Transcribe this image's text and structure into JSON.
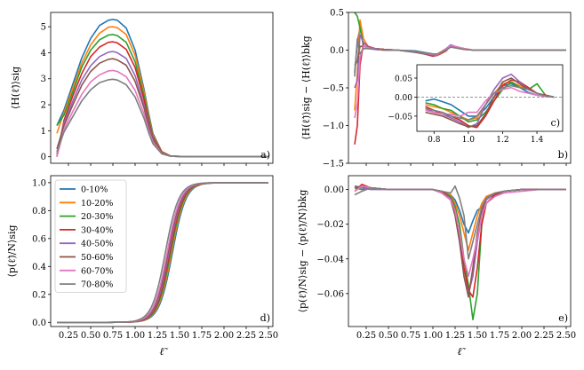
{
  "figure": {
    "xlabel": "ℓ̃"
  },
  "colors": {
    "0-10%": "#1f77b4",
    "10-20%": "#ff7f0e",
    "20-30%": "#2ca02c",
    "30-40%": "#d62728",
    "40-50%": "#9467bd",
    "50-60%": "#8c564b",
    "60-70%": "#e377c2",
    "70-80%": "#7f7f7f"
  },
  "chart_data": [
    {
      "id": "a",
      "type": "line",
      "panel_label": "a)",
      "ylabel": "⟨H(ℓ̃)⟩sig",
      "xlim": [
        0.05,
        2.55
      ],
      "ylim": [
        -0.25,
        5.55
      ],
      "yticks": [
        0,
        1,
        2,
        3,
        4,
        5
      ],
      "xticks": [
        0.25,
        0.5,
        0.75,
        1.0,
        1.25,
        1.5,
        1.75,
        2.0,
        2.25,
        2.5
      ],
      "x": [
        0.12,
        0.2,
        0.3,
        0.4,
        0.5,
        0.6,
        0.7,
        0.75,
        0.8,
        0.9,
        1.0,
        1.1,
        1.15,
        1.2,
        1.3,
        1.4,
        1.6,
        2.0,
        2.5
      ],
      "series": [
        {
          "name": "0-10%",
          "values": [
            1.2,
            1.8,
            2.8,
            3.8,
            4.55,
            5.05,
            5.25,
            5.28,
            5.25,
            4.95,
            4.1,
            2.6,
            1.7,
            0.9,
            0.2,
            0.03,
            0.0,
            0.0,
            0.0
          ]
        },
        {
          "name": "10-20%",
          "values": [
            0.9,
            1.7,
            2.65,
            3.6,
            4.3,
            4.75,
            4.98,
            5.0,
            4.96,
            4.7,
            3.9,
            2.5,
            1.6,
            0.85,
            0.2,
            0.03,
            0.0,
            0.0,
            0.0
          ]
        },
        {
          "name": "20-30%",
          "values": [
            1.2,
            1.6,
            2.5,
            3.45,
            4.1,
            4.5,
            4.68,
            4.7,
            4.66,
            4.4,
            3.65,
            2.35,
            1.5,
            0.8,
            0.18,
            0.03,
            0.0,
            0.0,
            0.0
          ]
        },
        {
          "name": "30-40%",
          "values": [
            0.0,
            1.4,
            2.35,
            3.2,
            3.85,
            4.22,
            4.4,
            4.42,
            4.38,
            4.13,
            3.43,
            2.2,
            1.4,
            0.75,
            0.17,
            0.02,
            0.0,
            0.0,
            0.0
          ]
        },
        {
          "name": "40-50%",
          "values": [
            0.1,
            1.3,
            2.15,
            2.95,
            3.5,
            3.85,
            4.02,
            4.05,
            4.0,
            3.78,
            3.12,
            2.0,
            1.3,
            0.7,
            0.15,
            0.02,
            0.0,
            0.0,
            0.0
          ]
        },
        {
          "name": "50-60%",
          "values": [
            0.3,
            1.2,
            2.0,
            2.75,
            3.28,
            3.6,
            3.75,
            3.77,
            3.72,
            3.52,
            2.9,
            1.88,
            1.2,
            0.65,
            0.14,
            0.02,
            0.0,
            0.0,
            0.0
          ]
        },
        {
          "name": "60-70%",
          "values": [
            0.0,
            1.05,
            1.75,
            2.4,
            2.88,
            3.15,
            3.3,
            3.32,
            3.28,
            3.08,
            2.55,
            1.65,
            1.05,
            0.57,
            0.12,
            0.02,
            0.0,
            0.0,
            0.0
          ]
        },
        {
          "name": "70-80%",
          "values": [
            0.2,
            0.95,
            1.55,
            2.15,
            2.58,
            2.85,
            2.96,
            2.98,
            2.95,
            2.77,
            2.3,
            1.48,
            0.95,
            0.5,
            0.11,
            0.02,
            0.0,
            0.0,
            0.0
          ]
        }
      ]
    },
    {
      "id": "b",
      "type": "line",
      "panel_label": "b)",
      "ylabel": "⟨H(ℓ̃)⟩sig − ⟨H(ℓ̃)⟩bkg",
      "xlim": [
        0.05,
        2.55
      ],
      "ylim": [
        -1.5,
        0.5
      ],
      "yticks": [
        -1.5,
        -1.0,
        -0.5,
        0.0,
        0.5
      ],
      "xticks": [
        0.25,
        0.5,
        0.75,
        1.0,
        1.25,
        1.5,
        1.75,
        2.0,
        2.25,
        2.5
      ],
      "x": [
        0.12,
        0.15,
        0.18,
        0.22,
        0.27,
        0.35,
        0.45,
        0.6,
        0.8,
        1.0,
        1.05,
        1.15,
        1.2,
        1.25,
        1.35,
        1.45,
        1.6,
        2.0,
        2.5
      ],
      "series": [
        {
          "name": "0-10%",
          "values": [
            -0.3,
            0.1,
            0.3,
            0.05,
            0.03,
            0.02,
            0.01,
            0.0,
            -0.01,
            -0.05,
            -0.05,
            0.0,
            0.05,
            0.04,
            0.02,
            0.0,
            0.0,
            0.0,
            0.0
          ]
        },
        {
          "name": "10-20%",
          "values": [
            -0.8,
            -0.3,
            0.4,
            0.15,
            0.05,
            0.02,
            0.01,
            0.0,
            -0.02,
            -0.06,
            -0.05,
            0.02,
            0.06,
            0.03,
            0.01,
            0.0,
            0.0,
            0.0,
            0.0
          ]
        },
        {
          "name": "20-30%",
          "values": [
            0.5,
            0.45,
            0.3,
            0.05,
            0.04,
            0.02,
            0.01,
            0.0,
            -0.02,
            -0.07,
            -0.06,
            0.0,
            0.05,
            0.04,
            0.02,
            0.0,
            0.0,
            0.0,
            0.0
          ]
        },
        {
          "name": "30-40%",
          "values": [
            -1.25,
            -1.0,
            -0.2,
            0.1,
            0.05,
            0.02,
            0.01,
            0.0,
            -0.02,
            -0.08,
            -0.07,
            -0.01,
            0.06,
            0.04,
            0.02,
            0.0,
            0.0,
            0.0,
            0.0
          ]
        },
        {
          "name": "40-50%",
          "values": [
            -0.5,
            -0.4,
            0.2,
            0.1,
            0.04,
            0.02,
            0.0,
            0.0,
            -0.03,
            -0.07,
            -0.07,
            0.02,
            0.07,
            0.05,
            0.02,
            0.0,
            0.0,
            0.0,
            0.0
          ]
        },
        {
          "name": "50-60%",
          "values": [
            -0.2,
            -0.15,
            0.05,
            0.05,
            0.03,
            0.01,
            0.0,
            0.0,
            -0.03,
            -0.07,
            -0.06,
            0.0,
            0.05,
            0.04,
            0.02,
            0.0,
            0.0,
            0.0,
            0.0
          ]
        },
        {
          "name": "60-70%",
          "values": [
            -0.9,
            -0.7,
            -0.1,
            0.05,
            0.03,
            0.01,
            0.0,
            0.0,
            -0.02,
            -0.06,
            -0.06,
            0.01,
            0.06,
            0.05,
            0.02,
            0.0,
            0.0,
            0.0,
            0.0
          ]
        },
        {
          "name": "70-80%",
          "values": [
            -0.35,
            0.15,
            -0.05,
            0.02,
            0.02,
            0.01,
            0.0,
            0.0,
            -0.02,
            -0.05,
            -0.05,
            0.0,
            0.04,
            0.03,
            0.01,
            0.0,
            0.0,
            0.0,
            0.0
          ]
        }
      ]
    },
    {
      "id": "c",
      "type": "line",
      "panel_label": "c)",
      "inset_of": "b",
      "xlim": [
        0.7,
        1.55
      ],
      "ylim": [
        -0.09,
        0.085
      ],
      "yticks": [
        -0.05,
        0.0,
        0.05
      ],
      "xticks": [
        0.8,
        1.0,
        1.2,
        1.4
      ],
      "zero_line": true,
      "x": [
        0.75,
        0.8,
        0.85,
        0.9,
        0.95,
        1.0,
        1.05,
        1.1,
        1.15,
        1.2,
        1.25,
        1.3,
        1.35,
        1.4,
        1.45,
        1.5
      ],
      "series": [
        {
          "name": "0-10%",
          "values": [
            -0.01,
            -0.005,
            -0.012,
            -0.02,
            -0.035,
            -0.05,
            -0.05,
            -0.03,
            0.0,
            0.03,
            0.035,
            0.025,
            0.012,
            0.005,
            0.002,
            0.0
          ]
        },
        {
          "name": "10-20%",
          "values": [
            -0.02,
            -0.025,
            -0.03,
            -0.04,
            -0.05,
            -0.06,
            -0.055,
            -0.02,
            0.01,
            0.035,
            0.04,
            0.03,
            0.02,
            0.01,
            0.003,
            0.0
          ]
        },
        {
          "name": "20-30%",
          "values": [
            -0.015,
            -0.02,
            -0.03,
            -0.035,
            -0.05,
            -0.065,
            -0.06,
            -0.04,
            -0.01,
            0.02,
            0.04,
            0.025,
            0.02,
            0.035,
            0.005,
            0.0
          ]
        },
        {
          "name": "30-40%",
          "values": [
            -0.025,
            -0.035,
            -0.045,
            -0.05,
            -0.06,
            -0.075,
            -0.08,
            -0.05,
            -0.01,
            0.03,
            0.045,
            0.04,
            0.025,
            0.01,
            0.005,
            0.0
          ]
        },
        {
          "name": "40-50%",
          "values": [
            -0.03,
            -0.04,
            -0.045,
            -0.055,
            -0.065,
            -0.08,
            -0.07,
            -0.02,
            0.02,
            0.05,
            0.06,
            0.04,
            0.02,
            0.01,
            0.003,
            0.0
          ]
        },
        {
          "name": "50-60%",
          "values": [
            -0.04,
            -0.045,
            -0.05,
            -0.06,
            -0.07,
            -0.078,
            -0.075,
            -0.045,
            0.0,
            0.04,
            0.05,
            0.035,
            0.02,
            0.01,
            0.003,
            0.0
          ]
        },
        {
          "name": "60-70%",
          "values": [
            -0.035,
            -0.04,
            -0.045,
            -0.045,
            -0.05,
            -0.04,
            -0.04,
            -0.01,
            0.01,
            0.02,
            0.025,
            0.015,
            0.01,
            0.005,
            0.002,
            0.0
          ]
        },
        {
          "name": "70-80%",
          "values": [
            -0.03,
            -0.035,
            -0.04,
            -0.05,
            -0.055,
            -0.06,
            -0.05,
            -0.02,
            0.01,
            0.025,
            0.03,
            0.025,
            0.02,
            0.01,
            0.003,
            0.0
          ]
        }
      ]
    },
    {
      "id": "d",
      "type": "line",
      "panel_label": "d)",
      "ylabel": "⟨p(ℓ̃)/N⟩sig",
      "xlim": [
        0.05,
        2.55
      ],
      "ylim": [
        -0.03,
        1.05
      ],
      "yticks": [
        0.0,
        0.2,
        0.4,
        0.6,
        0.8,
        1.0
      ],
      "xticks": [
        0.25,
        0.5,
        0.75,
        1.0,
        1.25,
        1.5,
        1.75,
        2.0,
        2.25,
        2.5
      ],
      "legend_position": "upper-left",
      "sigmoid_centers": [
        1.42,
        1.41,
        1.4,
        1.39,
        1.38,
        1.37,
        1.36,
        1.34
      ],
      "sigmoid_width": 0.075,
      "x_range": [
        0.12,
        2.5
      ],
      "series": [
        {
          "name": "0-10%"
        },
        {
          "name": "10-20%"
        },
        {
          "name": "20-30%"
        },
        {
          "name": "30-40%"
        },
        {
          "name": "40-50%"
        },
        {
          "name": "50-60%"
        },
        {
          "name": "60-70%"
        },
        {
          "name": "70-80%"
        }
      ]
    },
    {
      "id": "e",
      "type": "line",
      "panel_label": "e)",
      "ylabel": "⟨p(ℓ̃)/N⟩sig − ⟨p(ℓ̃)/N⟩bkg",
      "xlim": [
        0.05,
        2.55
      ],
      "ylim": [
        -0.079,
        0.008
      ],
      "yticks": [
        0.0,
        -0.02,
        -0.04,
        -0.06
      ],
      "xticks": [
        0.25,
        0.5,
        0.75,
        1.0,
        1.25,
        1.5,
        1.75,
        2.0,
        2.25,
        2.5
      ],
      "x": [
        0.12,
        0.2,
        0.3,
        0.5,
        0.8,
        1.0,
        1.1,
        1.2,
        1.25,
        1.3,
        1.35,
        1.4,
        1.45,
        1.5,
        1.55,
        1.6,
        1.7,
        1.8,
        2.0,
        2.2,
        2.5
      ],
      "series": [
        {
          "name": "0-10%",
          "values": [
            0.002,
            0.001,
            0.001,
            0.0,
            0.0,
            0.0,
            -0.001,
            -0.003,
            -0.006,
            -0.012,
            -0.02,
            -0.025,
            -0.018,
            -0.012,
            -0.01,
            -0.005,
            -0.003,
            -0.001,
            0.0,
            0.0,
            0.0
          ]
        },
        {
          "name": "10-20%",
          "values": [
            -0.001,
            0.002,
            0.001,
            0.0,
            0.0,
            0.0,
            -0.001,
            -0.003,
            -0.008,
            -0.015,
            -0.025,
            -0.035,
            -0.025,
            -0.015,
            -0.008,
            -0.004,
            -0.002,
            -0.001,
            0.0,
            0.0,
            0.0
          ]
        },
        {
          "name": "20-30%",
          "values": [
            0.001,
            0.0,
            0.001,
            0.0,
            0.0,
            0.0,
            -0.001,
            -0.004,
            -0.01,
            -0.02,
            -0.04,
            -0.055,
            -0.075,
            -0.06,
            -0.02,
            -0.008,
            -0.003,
            -0.001,
            0.0,
            0.0,
            0.0
          ]
        },
        {
          "name": "30-40%",
          "values": [
            -0.001,
            0.003,
            0.001,
            0.0,
            0.0,
            0.0,
            -0.001,
            -0.005,
            -0.012,
            -0.025,
            -0.045,
            -0.058,
            -0.062,
            -0.045,
            -0.02,
            -0.008,
            -0.003,
            -0.001,
            0.0,
            0.0,
            0.0
          ]
        },
        {
          "name": "40-50%",
          "values": [
            0.002,
            0.001,
            0.0,
            0.0,
            0.0,
            0.0,
            -0.002,
            -0.005,
            -0.015,
            -0.03,
            -0.05,
            -0.06,
            -0.05,
            -0.03,
            -0.015,
            -0.006,
            -0.002,
            -0.001,
            0.0,
            0.0,
            0.0
          ]
        },
        {
          "name": "50-60%",
          "values": [
            0.001,
            0.002,
            0.001,
            0.0,
            0.0,
            0.0,
            -0.002,
            -0.006,
            -0.015,
            -0.03,
            -0.05,
            -0.062,
            -0.045,
            -0.025,
            -0.012,
            -0.005,
            -0.002,
            -0.001,
            0.0,
            0.0,
            0.0
          ]
        },
        {
          "name": "60-70%",
          "values": [
            -0.001,
            0.002,
            0.001,
            0.0,
            0.0,
            0.0,
            -0.002,
            -0.006,
            -0.012,
            -0.025,
            -0.04,
            -0.05,
            -0.04,
            -0.028,
            -0.015,
            -0.008,
            -0.004,
            -0.002,
            -0.001,
            0.0,
            0.0
          ]
        },
        {
          "name": "70-80%",
          "values": [
            -0.003,
            -0.001,
            0.001,
            0.0,
            0.0,
            0.0,
            -0.001,
            -0.002,
            0.002,
            -0.005,
            -0.015,
            -0.04,
            -0.03,
            -0.02,
            -0.01,
            -0.005,
            -0.002,
            -0.001,
            0.0,
            0.0,
            0.0
          ]
        }
      ]
    }
  ]
}
